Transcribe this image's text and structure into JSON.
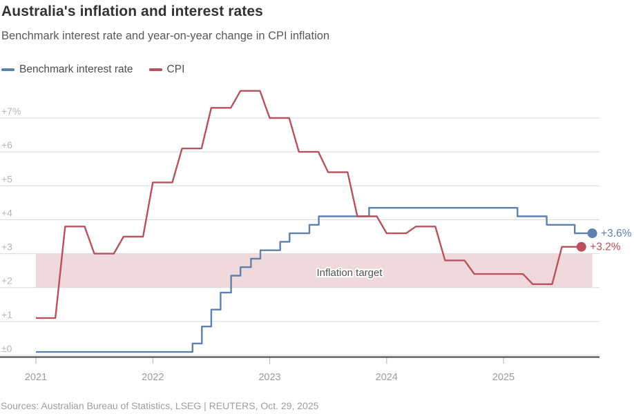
{
  "header": {
    "title": "Australia's inflation and interest rates",
    "subtitle": "Benchmark interest rate and year-on-year change in CPI inflation"
  },
  "legend": {
    "items": [
      {
        "label": "Benchmark interest rate",
        "color": "#5d80ad"
      },
      {
        "label": "CPI",
        "color": "#b8505e"
      }
    ]
  },
  "footer": {
    "source": "Sources: Australian Bureau of Statistics, LSEG | REUTERS, Oct. 29, 2025"
  },
  "chart_data": {
    "type": "line",
    "title": "Australia's inflation and interest rates",
    "subtitle": "Benchmark interest rate and year-on-year change in CPI inflation",
    "xlabel": "",
    "ylabel": "",
    "x_unit": "decimal_year",
    "grid": "horizontal",
    "x_axis": {
      "ticks": [
        2021,
        2022,
        2023,
        2024,
        2025
      ],
      "labels": [
        "2021",
        "2022",
        "2023",
        "2024",
        "2025"
      ],
      "range": [
        2021.0,
        2025.83
      ]
    },
    "y_axis": {
      "ticks": [
        0,
        1,
        2,
        3,
        4,
        5,
        6,
        7
      ],
      "labels": [
        "±0",
        "+1",
        "+2",
        "+3",
        "+4",
        "+5",
        "+6",
        "+7%"
      ],
      "ylim": [
        0,
        7.8
      ]
    },
    "band": {
      "y_from": 2,
      "y_to": 3,
      "label": "Inflation target",
      "color": "#f0d9dc",
      "label_color": "#545454"
    },
    "series": [
      {
        "name": "Benchmark interest rate",
        "color": "#5d80ad",
        "mode": "step-after",
        "end_label": "+3.6%",
        "end_x": 2025.76,
        "points": [
          [
            2021.0,
            0.1
          ],
          [
            2022.34,
            0.35
          ],
          [
            2022.42,
            0.85
          ],
          [
            2022.5,
            1.35
          ],
          [
            2022.58,
            1.85
          ],
          [
            2022.67,
            2.35
          ],
          [
            2022.75,
            2.6
          ],
          [
            2022.84,
            2.85
          ],
          [
            2022.92,
            3.1
          ],
          [
            2023.09,
            3.35
          ],
          [
            2023.17,
            3.6
          ],
          [
            2023.34,
            3.85
          ],
          [
            2023.42,
            4.1
          ],
          [
            2023.85,
            4.35
          ],
          [
            2025.12,
            4.1
          ],
          [
            2025.37,
            3.85
          ],
          [
            2025.61,
            3.6
          ]
        ]
      },
      {
        "name": "CPI",
        "color": "#b8505e",
        "mode": "quarterly-plateau-ramp",
        "end_label": "+3.2%",
        "points": [
          [
            2021.0,
            1.1
          ],
          [
            2021.25,
            3.8
          ],
          [
            2021.5,
            3.0
          ],
          [
            2021.75,
            3.5
          ],
          [
            2022.0,
            5.1
          ],
          [
            2022.25,
            6.1
          ],
          [
            2022.5,
            7.3
          ],
          [
            2022.75,
            7.8
          ],
          [
            2023.0,
            7.0
          ],
          [
            2023.25,
            6.0
          ],
          [
            2023.5,
            5.4
          ],
          [
            2023.75,
            4.1
          ],
          [
            2024.0,
            3.6
          ],
          [
            2024.25,
            3.8
          ],
          [
            2024.5,
            2.8
          ],
          [
            2024.75,
            2.4
          ],
          [
            2025.0,
            2.4
          ],
          [
            2025.25,
            2.1
          ],
          [
            2025.5,
            3.2
          ]
        ]
      }
    ]
  }
}
